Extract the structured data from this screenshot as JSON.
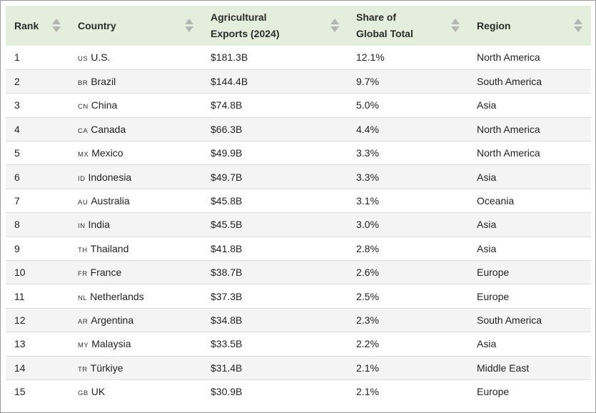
{
  "table": {
    "headers": [
      {
        "line1": "Rank",
        "line2": ""
      },
      {
        "line1": "Country",
        "line2": ""
      },
      {
        "line1": "Agricultural",
        "line2": "Exports (2024)"
      },
      {
        "line1": "Share of",
        "line2": "Global Total"
      },
      {
        "line1": "Region",
        "line2": ""
      }
    ],
    "rows": [
      {
        "rank": "1",
        "code": "US",
        "country": "U.S.",
        "exports": "$181.3B",
        "share": "12.1%",
        "region": "North America"
      },
      {
        "rank": "2",
        "code": "BR",
        "country": "Brazil",
        "exports": "$144.4B",
        "share": "9.7%",
        "region": "South America"
      },
      {
        "rank": "3",
        "code": "CN",
        "country": "China",
        "exports": "$74.8B",
        "share": "5.0%",
        "region": "Asia"
      },
      {
        "rank": "4",
        "code": "CA",
        "country": "Canada",
        "exports": "$66.3B",
        "share": "4.4%",
        "region": "North America"
      },
      {
        "rank": "5",
        "code": "MX",
        "country": "Mexico",
        "exports": "$49.9B",
        "share": "3.3%",
        "region": "North America"
      },
      {
        "rank": "6",
        "code": "ID",
        "country": "Indonesia",
        "exports": "$49.7B",
        "share": "3.3%",
        "region": "Asia"
      },
      {
        "rank": "7",
        "code": "AU",
        "country": "Australia",
        "exports": "$45.8B",
        "share": "3.1%",
        "region": "Oceania"
      },
      {
        "rank": "8",
        "code": "IN",
        "country": "India",
        "exports": "$45.5B",
        "share": "3.0%",
        "region": "Asia"
      },
      {
        "rank": "9",
        "code": "TH",
        "country": "Thailand",
        "exports": "$41.8B",
        "share": "2.8%",
        "region": "Asia"
      },
      {
        "rank": "10",
        "code": "FR",
        "country": "France",
        "exports": "$38.7B",
        "share": "2.6%",
        "region": "Europe"
      },
      {
        "rank": "11",
        "code": "NL",
        "country": "Netherlands",
        "exports": "$37.3B",
        "share": "2.5%",
        "region": "Europe"
      },
      {
        "rank": "12",
        "code": "AR",
        "country": "Argentina",
        "exports": "$34.8B",
        "share": "2.3%",
        "region": "South America"
      },
      {
        "rank": "13",
        "code": "MY",
        "country": "Malaysia",
        "exports": "$33.5B",
        "share": "2.2%",
        "region": "Asia"
      },
      {
        "rank": "14",
        "code": "TR",
        "country": "Türkiye",
        "exports": "$31.4B",
        "share": "2.1%",
        "region": "Middle East"
      },
      {
        "rank": "15",
        "code": "GB",
        "country": "UK",
        "exports": "$30.9B",
        "share": "2.1%",
        "region": "Europe"
      }
    ]
  },
  "colors": {
    "header_bg": "#e3eedc",
    "alt_row_bg": "#f4f4f4",
    "sort_icon": "#b4b4b4"
  }
}
